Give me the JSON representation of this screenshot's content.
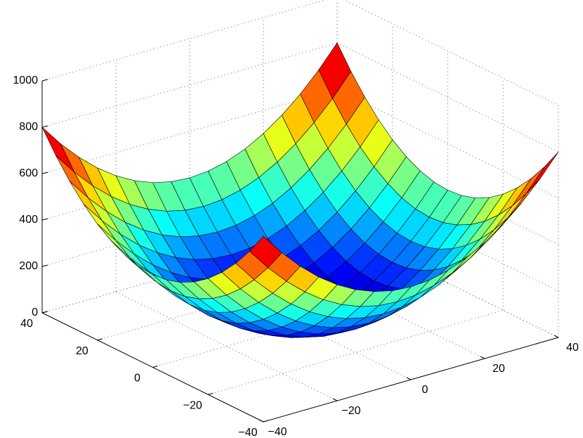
{
  "chart_data": {
    "type": "surface",
    "x": [
      -40,
      -35,
      -30,
      -25,
      -20,
      -15,
      -10,
      -5,
      0,
      5,
      10,
      15,
      20,
      25,
      30,
      35,
      40
    ],
    "y": [
      -40,
      -35,
      -30,
      -25,
      -20,
      -15,
      -10,
      -5,
      0,
      5,
      10,
      15,
      20,
      25,
      30,
      35,
      40
    ],
    "z": [
      [
        800,
        706.25,
        625,
        556.25,
        500,
        456.25,
        425,
        406.25,
        400,
        406.25,
        425,
        456.25,
        500,
        556.25,
        625,
        706.25,
        800
      ],
      [
        706.25,
        612.5,
        531.25,
        462.5,
        406.25,
        362.5,
        331.25,
        312.5,
        306.25,
        312.5,
        331.25,
        362.5,
        406.25,
        462.5,
        531.25,
        612.5,
        706.25
      ],
      [
        625,
        531.25,
        450,
        381.25,
        325,
        281.25,
        250,
        231.25,
        225,
        231.25,
        250,
        281.25,
        325,
        381.25,
        450,
        531.25,
        625
      ],
      [
        556.25,
        462.5,
        381.25,
        312.5,
        256.25,
        212.5,
        181.25,
        162.5,
        156.25,
        162.5,
        181.25,
        212.5,
        256.25,
        312.5,
        381.25,
        462.5,
        556.25
      ],
      [
        500,
        406.25,
        325,
        256.25,
        200,
        156.25,
        125,
        106.25,
        100,
        106.25,
        125,
        156.25,
        200,
        256.25,
        325,
        406.25,
        500
      ],
      [
        456.25,
        362.5,
        281.25,
        212.5,
        156.25,
        112.5,
        81.25,
        62.5,
        56.25,
        62.5,
        81.25,
        112.5,
        156.25,
        212.5,
        281.25,
        362.5,
        456.25
      ],
      [
        425,
        331.25,
        250,
        181.25,
        125,
        81.25,
        50,
        31.25,
        25,
        31.25,
        50,
        81.25,
        125,
        181.25,
        250,
        331.25,
        425
      ],
      [
        406.25,
        312.5,
        231.25,
        162.5,
        106.25,
        62.5,
        31.25,
        12.5,
        6.25,
        12.5,
        31.25,
        62.5,
        106.25,
        162.5,
        231.25,
        312.5,
        406.25
      ],
      [
        400,
        306.25,
        225,
        156.25,
        100,
        56.25,
        25,
        6.25,
        0,
        6.25,
        25,
        56.25,
        100,
        156.25,
        225,
        306.25,
        400
      ],
      [
        406.25,
        312.5,
        231.25,
        162.5,
        106.25,
        62.5,
        31.25,
        12.5,
        6.25,
        12.5,
        31.25,
        62.5,
        106.25,
        162.5,
        231.25,
        312.5,
        406.25
      ],
      [
        425,
        331.25,
        250,
        181.25,
        125,
        81.25,
        50,
        31.25,
        25,
        31.25,
        50,
        81.25,
        125,
        181.25,
        250,
        331.25,
        425
      ],
      [
        456.25,
        362.5,
        281.25,
        212.5,
        156.25,
        112.5,
        81.25,
        62.5,
        56.25,
        62.5,
        81.25,
        112.5,
        156.25,
        212.5,
        281.25,
        362.5,
        456.25
      ],
      [
        500,
        406.25,
        325,
        256.25,
        200,
        156.25,
        125,
        106.25,
        100,
        106.25,
        125,
        156.25,
        200,
        256.25,
        325,
        406.25,
        500
      ],
      [
        556.25,
        462.5,
        381.25,
        312.5,
        256.25,
        212.5,
        181.25,
        162.5,
        156.25,
        162.5,
        181.25,
        212.5,
        256.25,
        312.5,
        381.25,
        462.5,
        556.25
      ],
      [
        625,
        531.25,
        450,
        381.25,
        325,
        281.25,
        250,
        231.25,
        225,
        231.25,
        250,
        281.25,
        325,
        381.25,
        450,
        531.25,
        625
      ],
      [
        706.25,
        612.5,
        531.25,
        462.5,
        406.25,
        362.5,
        331.25,
        312.5,
        306.25,
        312.5,
        331.25,
        362.5,
        406.25,
        462.5,
        531.25,
        612.5,
        706.25
      ],
      [
        800,
        706.25,
        625,
        556.25,
        500,
        456.25,
        425,
        406.25,
        400,
        406.25,
        425,
        456.25,
        500,
        556.25,
        625,
        706.25,
        800
      ]
    ],
    "xlim": [
      -40,
      40
    ],
    "ylim": [
      -40,
      40
    ],
    "zlim": [
      0,
      1000
    ],
    "clim": [
      0,
      800
    ],
    "xticks": [
      {
        "value": -40,
        "label": "−40"
      },
      {
        "value": -20,
        "label": "−20"
      },
      0,
      20,
      40
    ],
    "yticks": [
      {
        "value": -40,
        "label": "−40"
      },
      {
        "value": -20,
        "label": "−20"
      },
      0,
      20,
      40
    ],
    "zticks": [
      0,
      200,
      400,
      600,
      800,
      1000
    ],
    "grid": true,
    "colormap": "jet",
    "edge_color": "#000000"
  }
}
